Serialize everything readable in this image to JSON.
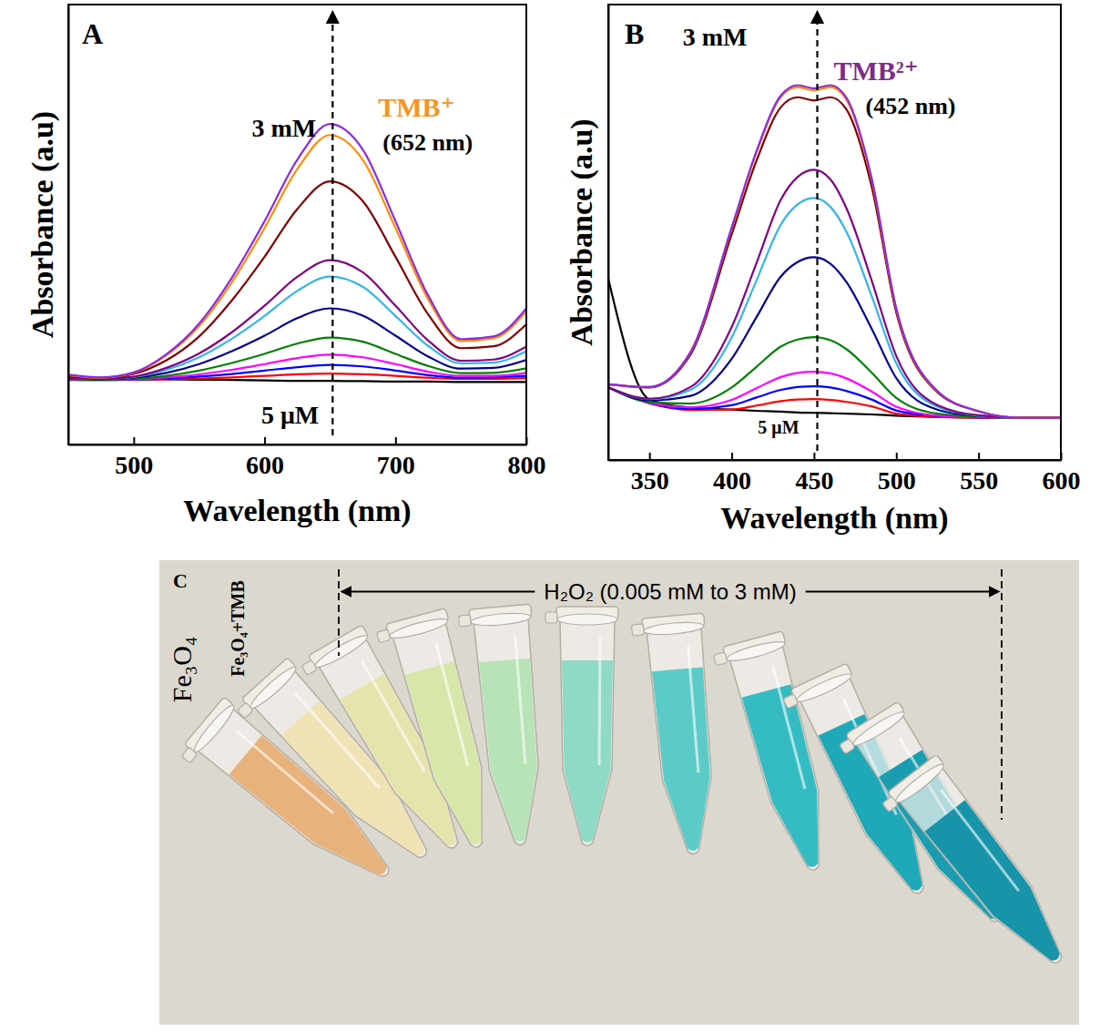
{
  "chart_data": [
    {
      "type": "line",
      "panel_label": "A",
      "x_label": "Wavelength (nm)",
      "y_label": "Absorbance (a.u)",
      "x": [
        450,
        475,
        500,
        525,
        550,
        575,
        600,
        625,
        650,
        675,
        700,
        725,
        750,
        775,
        800
      ],
      "xlim": [
        450,
        800
      ],
      "xticks": [
        500,
        600,
        700,
        800
      ],
      "ylim": [
        0,
        1.16
      ],
      "tick_labels": "x",
      "peak_x": 652,
      "annotations": [
        "TMB⁺",
        "(652 nm)",
        "3 mM",
        "5 μM"
      ],
      "series": [
        {
          "color": "#000000",
          "values": [
            0.175,
            0.174,
            0.173,
            0.172,
            0.171,
            0.17,
            0.169,
            0.168,
            0.168,
            0.167,
            0.166,
            0.166,
            0.165,
            0.165,
            0.165
          ]
        },
        {
          "color": "#ff0000",
          "values": [
            0.17,
            0.17,
            0.171,
            0.172,
            0.174,
            0.177,
            0.181,
            0.185,
            0.187,
            0.185,
            0.181,
            0.176,
            0.173,
            0.173,
            0.175
          ]
        },
        {
          "color": "#0000ff",
          "values": [
            0.171,
            0.17,
            0.171,
            0.174,
            0.179,
            0.186,
            0.195,
            0.204,
            0.21,
            0.206,
            0.195,
            0.183,
            0.176,
            0.177,
            0.181
          ]
        },
        {
          "color": "#ff00ff",
          "values": [
            0.171,
            0.171,
            0.172,
            0.177,
            0.185,
            0.197,
            0.212,
            0.228,
            0.237,
            0.23,
            0.212,
            0.192,
            0.181,
            0.181,
            0.189
          ]
        },
        {
          "color": "#008000",
          "values": [
            0.172,
            0.171,
            0.173,
            0.181,
            0.195,
            0.215,
            0.239,
            0.266,
            0.282,
            0.271,
            0.239,
            0.207,
            0.188,
            0.189,
            0.201
          ]
        },
        {
          "color": "#00008b",
          "values": [
            0.174,
            0.172,
            0.176,
            0.189,
            0.212,
            0.246,
            0.287,
            0.333,
            0.359,
            0.34,
            0.287,
            0.232,
            0.2,
            0.202,
            0.223
          ]
        },
        {
          "color": "#33b5e5",
          "values": [
            0.175,
            0.173,
            0.178,
            0.197,
            0.23,
            0.279,
            0.339,
            0.405,
            0.443,
            0.416,
            0.339,
            0.26,
            0.214,
            0.216,
            0.246
          ]
        },
        {
          "color": "#800080",
          "values": [
            0.176,
            0.173,
            0.179,
            0.202,
            0.24,
            0.296,
            0.366,
            0.442,
            0.486,
            0.454,
            0.366,
            0.274,
            0.221,
            0.224,
            0.258
          ]
        },
        {
          "color": "#800000",
          "values": [
            0.18,
            0.175,
            0.186,
            0.222,
            0.285,
            0.38,
            0.495,
            0.621,
            0.694,
            0.642,
            0.495,
            0.343,
            0.254,
            0.259,
            0.317
          ]
        },
        {
          "color": "#ff8c00",
          "values": [
            0.183,
            0.176,
            0.189,
            0.235,
            0.312,
            0.428,
            0.571,
            0.726,
            0.816,
            0.751,
            0.571,
            0.383,
            0.273,
            0.28,
            0.351
          ]
        },
        {
          "color": "#8a2be2",
          "values": [
            0.184,
            0.177,
            0.19,
            0.238,
            0.319,
            0.44,
            0.589,
            0.751,
            0.845,
            0.778,
            0.589,
            0.393,
            0.278,
            0.285,
            0.359
          ]
        }
      ]
    },
    {
      "type": "line",
      "panel_label": "B",
      "x_label": "Wavelength (nm)",
      "y_label": "Absorbance (a.u)",
      "x": [
        325,
        350,
        375,
        400,
        415,
        430,
        440,
        450,
        460,
        470,
        485,
        500,
        525,
        550,
        575,
        600
      ],
      "xlim": [
        325,
        600
      ],
      "xticks": [
        350,
        400,
        450,
        500,
        550,
        600
      ],
      "ylim": [
        0,
        1.13
      ],
      "tick_labels": "x",
      "peak_x": 452,
      "annotations": [
        "TMB²⁺",
        "(452 nm)",
        "3 mM",
        "5 μM"
      ],
      "series": [
        {
          "color": "#000000",
          "values": [
            0.45,
            0.15,
            0.13,
            0.125,
            0.122,
            0.12,
            0.118,
            0.117,
            0.116,
            0.115,
            0.113,
            0.11,
            0.107,
            0.105,
            0.104,
            0.104
          ]
        },
        {
          "color": "#ff0000",
          "values": [
            0.18,
            0.141,
            0.124,
            0.125,
            0.135,
            0.146,
            0.15,
            0.151,
            0.149,
            0.144,
            0.133,
            0.115,
            0.107,
            0.105,
            0.105,
            0.105
          ]
        },
        {
          "color": "#0000ff",
          "values": [
            0.18,
            0.141,
            0.127,
            0.136,
            0.155,
            0.174,
            0.181,
            0.183,
            0.18,
            0.171,
            0.15,
            0.123,
            0.109,
            0.106,
            0.105,
            0.105
          ]
        },
        {
          "color": "#ff00ff",
          "values": [
            0.18,
            0.142,
            0.131,
            0.149,
            0.178,
            0.206,
            0.216,
            0.219,
            0.215,
            0.202,
            0.17,
            0.132,
            0.11,
            0.106,
            0.105,
            0.105
          ]
        },
        {
          "color": "#008000",
          "values": [
            0.18,
            0.144,
            0.14,
            0.18,
            0.231,
            0.282,
            0.299,
            0.305,
            0.297,
            0.274,
            0.217,
            0.154,
            0.115,
            0.107,
            0.105,
            0.105
          ]
        },
        {
          "color": "#00008b",
          "values": [
            0.18,
            0.148,
            0.159,
            0.251,
            0.354,
            0.456,
            0.491,
            0.503,
            0.487,
            0.44,
            0.326,
            0.203,
            0.125,
            0.109,
            0.105,
            0.105
          ]
        },
        {
          "color": "#33b5e5",
          "values": [
            0.18,
            0.151,
            0.174,
            0.304,
            0.445,
            0.585,
            0.634,
            0.65,
            0.628,
            0.564,
            0.407,
            0.24,
            0.132,
            0.11,
            0.105,
            0.105
          ]
        },
        {
          "color": "#800080",
          "values": [
            0.18,
            0.152,
            0.181,
            0.33,
            0.488,
            0.647,
            0.702,
            0.72,
            0.696,
            0.622,
            0.446,
            0.258,
            0.136,
            0.111,
            0.105,
            0.105
          ]
        },
        {
          "color": "#800000",
          "values": [
            0.188,
            0.18,
            0.262,
            0.56,
            0.742,
            0.876,
            0.9,
            0.892,
            0.9,
            0.868,
            0.679,
            0.366,
            0.168,
            0.121,
            0.105,
            0.105
          ]
        },
        {
          "color": "#ff8c00",
          "values": [
            0.188,
            0.181,
            0.267,
            0.575,
            0.762,
            0.901,
            0.925,
            0.917,
            0.925,
            0.892,
            0.697,
            0.374,
            0.17,
            0.121,
            0.105,
            0.105
          ]
        },
        {
          "color": "#8a2be2",
          "values": [
            0.188,
            0.181,
            0.268,
            0.577,
            0.766,
            0.905,
            0.93,
            0.922,
            0.93,
            0.897,
            0.7,
            0.376,
            0.171,
            0.121,
            0.105,
            0.105
          ]
        }
      ]
    }
  ],
  "photo": {
    "panel_label": "C",
    "range_label": "H₂O₂ (0.005 mM to 3 mM)",
    "tubes": [
      {
        "label": "Fe₃O₄",
        "color": "#e8b27c"
      },
      {
        "label": "Fe₃O₄+TMB",
        "color": "#efe3b5"
      },
      {
        "color": "#e6e4ad"
      },
      {
        "color": "#d7e6a9"
      },
      {
        "color": "#b8e3b6"
      },
      {
        "color": "#8fdac6"
      },
      {
        "color": "#5ccbc8"
      },
      {
        "color": "#35bcc3"
      },
      {
        "color": "#1fa9b8"
      },
      {
        "color": "#1a9db1"
      },
      {
        "color": "#1794aa"
      }
    ]
  }
}
